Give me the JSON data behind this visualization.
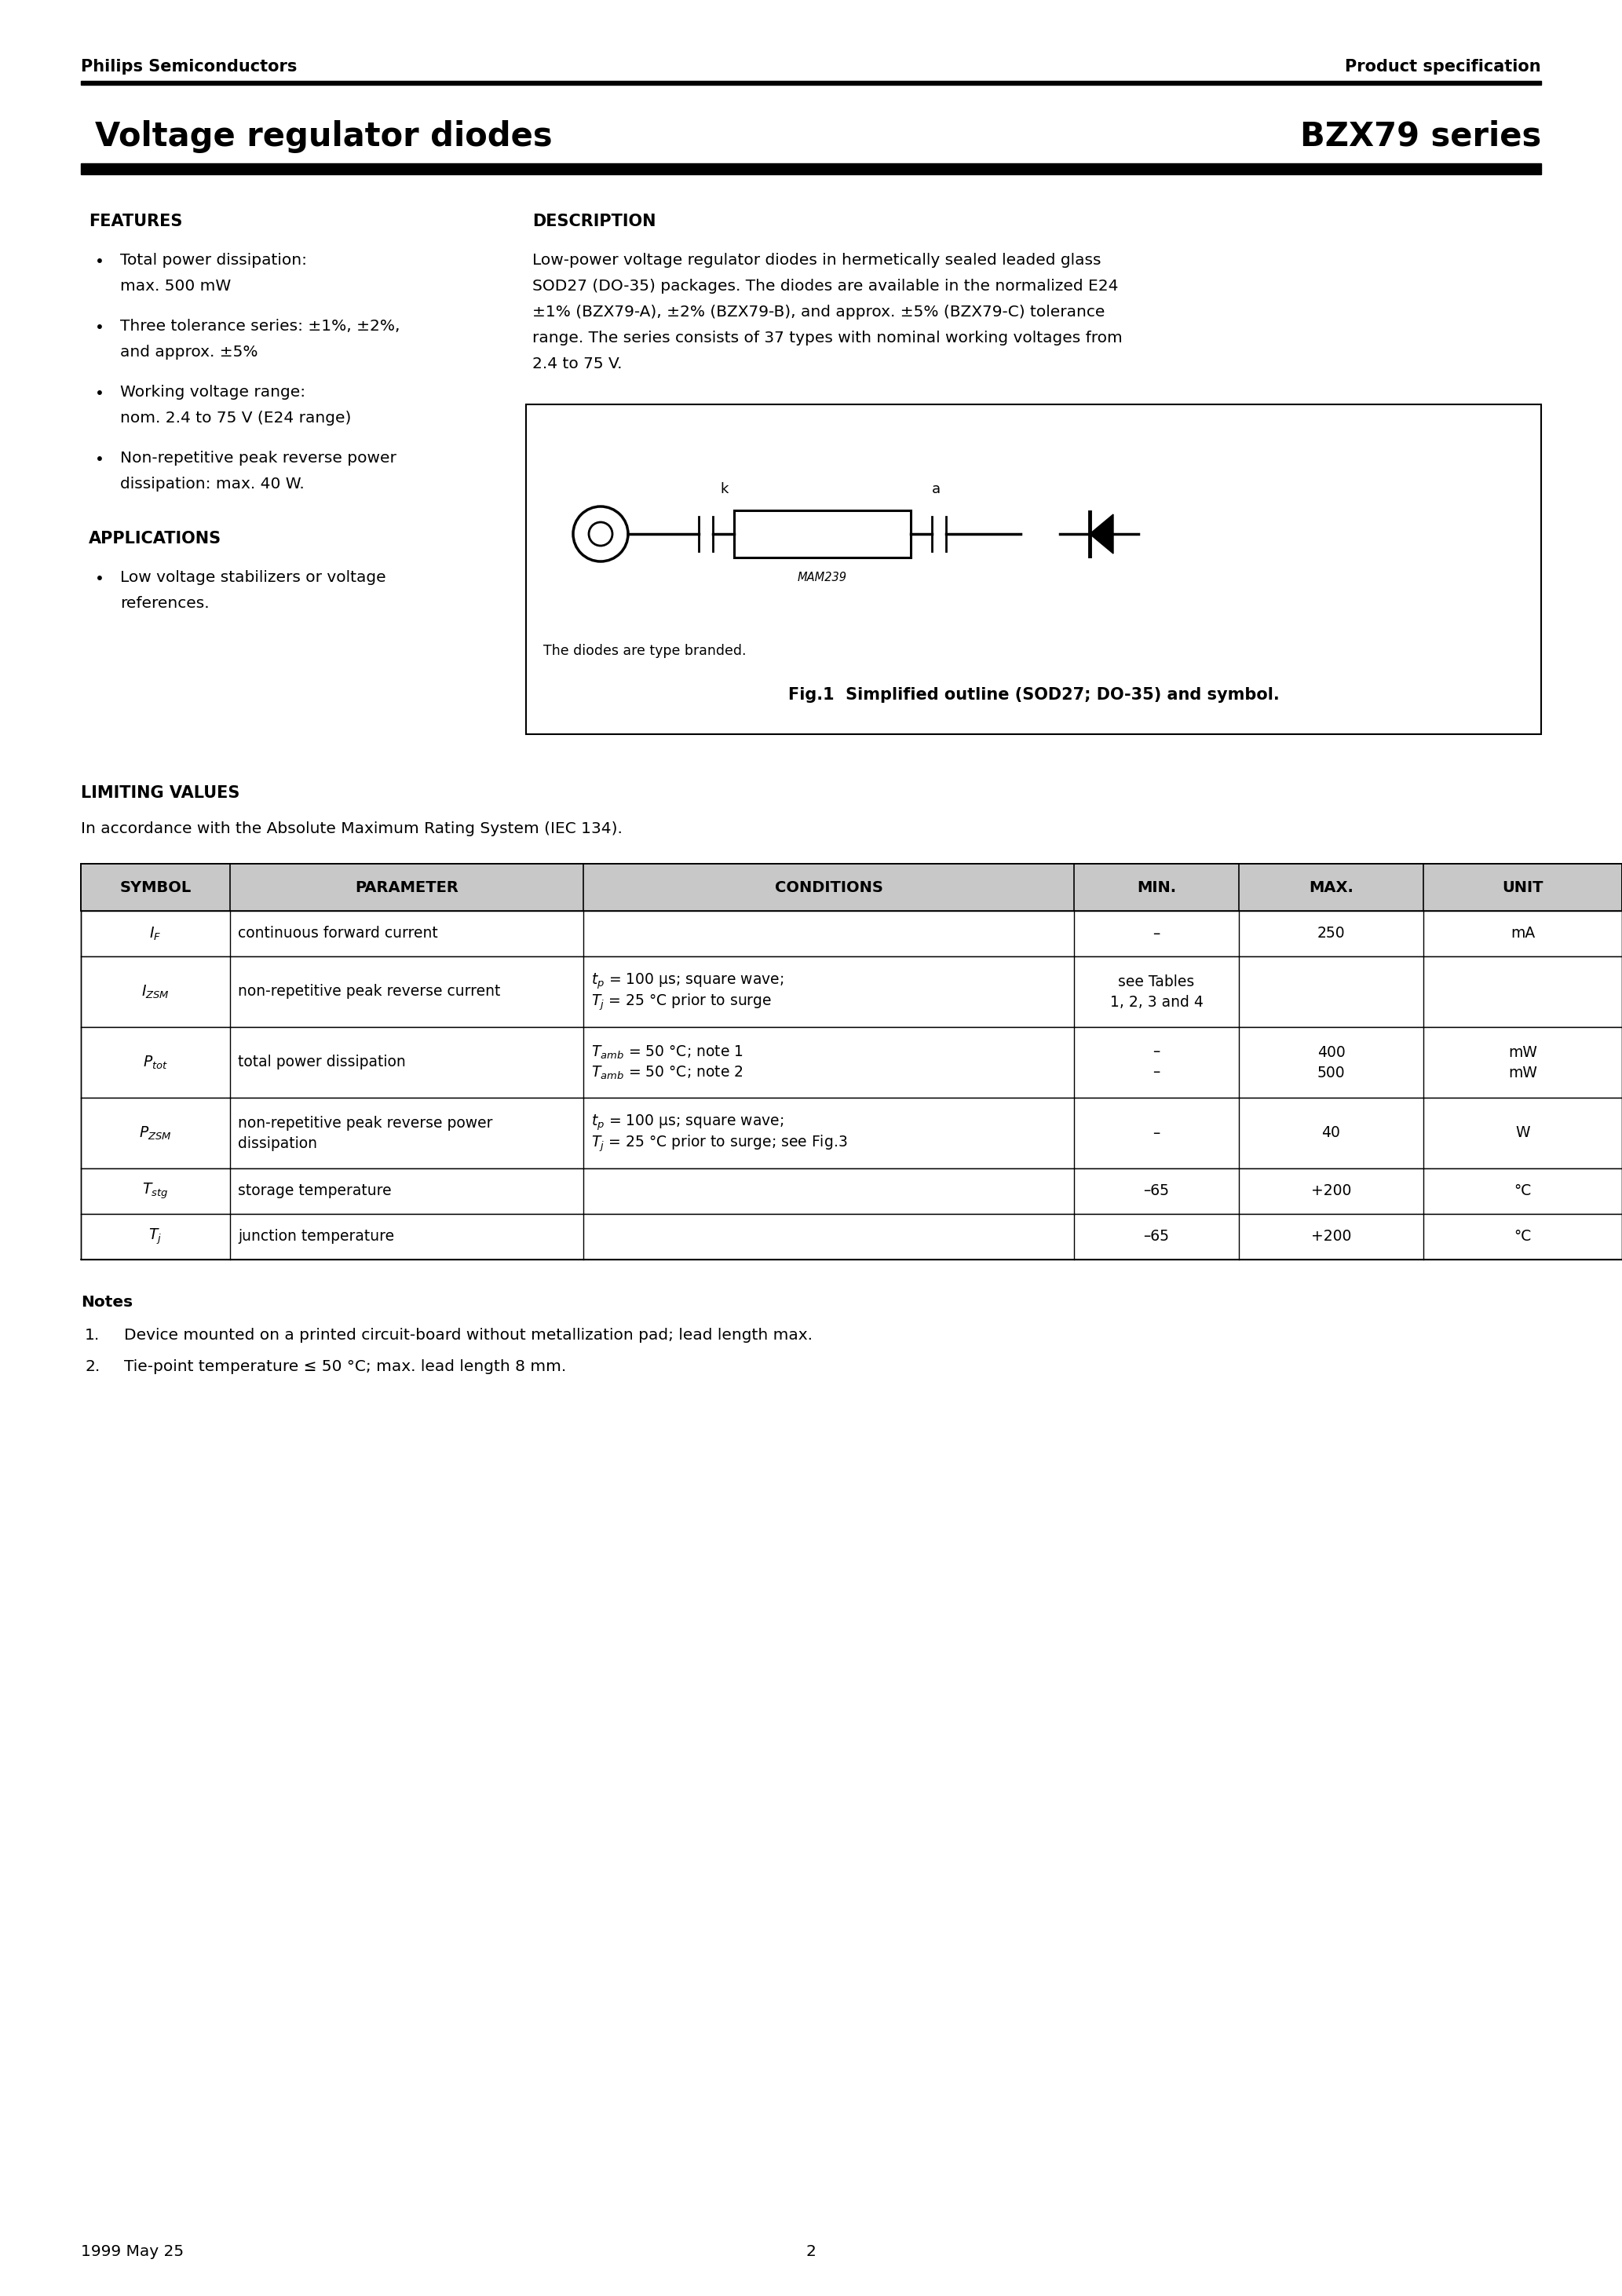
{
  "page_bg": "#ffffff",
  "header_left": "Philips Semiconductors",
  "header_right": "Product specification",
  "title_left": "Voltage regulator diodes",
  "title_right": "BZX79 series",
  "features_title": "FEATURES",
  "features_items": [
    "Total power dissipation:\nmax. 500 mW",
    "Three tolerance series: ±1%, ±2%,\nand approx. ±5%",
    "Working voltage range:\nnom. 2.4 to 75 V (E24 range)",
    "Non-repetitive peak reverse power\ndissipation: max. 40 W."
  ],
  "applications_title": "APPLICATIONS",
  "applications_items": [
    "Low voltage stabilizers or voltage\nreferences."
  ],
  "description_title": "DESCRIPTION",
  "description_lines": [
    "Low-power voltage regulator diodes in hermetically sealed leaded glass",
    "SOD27 (DO-35) packages. The diodes are available in the normalized E24",
    "±1% (BZX79-A), ±2% (BZX79-B), and approx. ±5% (BZX79-C) tolerance",
    "range. The series consists of 37 types with nominal working voltages from",
    "2.4 to 75 V."
  ],
  "fig_caption_inside": "The diodes are type branded.",
  "fig_caption_outside": "Fig.1  Simplified outline (SOD27; DO-35) and symbol.",
  "limiting_title": "LIMITING VALUES",
  "limiting_subtitle": "In accordance with the Absolute Maximum Rating System (IEC 134).",
  "table_col_headers": [
    "SYMBOL",
    "PARAMETER",
    "CONDITIONS",
    "MIN.",
    "MAX.",
    "UNIT"
  ],
  "table_rows": [
    {
      "sym": "I_F",
      "param": [
        "continuous forward current"
      ],
      "cond": [],
      "min": [
        "–"
      ],
      "max": [
        "250"
      ],
      "unit": [
        "mA"
      ],
      "rh": 58
    },
    {
      "sym": "I_ZSM",
      "param": [
        "non-repetitive peak reverse current"
      ],
      "cond": [
        "tₚ = 100 μs; square wave;",
        "Tⱼ = 25 °C prior to surge"
      ],
      "min": [
        "see Tables",
        "1, 2, 3 and 4"
      ],
      "max": [
        ""
      ],
      "unit": [
        ""
      ],
      "rh": 90
    },
    {
      "sym": "P_tot",
      "param": [
        "total power dissipation"
      ],
      "cond": [
        "Tₐₘᵇ = 50 °C; note 1",
        "Tₐₘᵇ = 50 °C; note 2"
      ],
      "min": [
        "–",
        "–"
      ],
      "max": [
        "400",
        "500"
      ],
      "unit": [
        "mW",
        "mW"
      ],
      "rh": 90
    },
    {
      "sym": "P_ZSM",
      "param": [
        "non-repetitive peak reverse power",
        "dissipation"
      ],
      "cond": [
        "tₚ = 100 μs; square wave;",
        "Tⱼ = 25 °C prior to surge; see Fig.3"
      ],
      "min": [
        "–"
      ],
      "max": [
        "40"
      ],
      "unit": [
        "W"
      ],
      "rh": 90
    },
    {
      "sym": "T_stg",
      "param": [
        "storage temperature"
      ],
      "cond": [],
      "min": [
        "–65"
      ],
      "max": [
        "+200"
      ],
      "unit": [
        "°C"
      ],
      "rh": 58
    },
    {
      "sym": "T_j",
      "param": [
        "junction temperature"
      ],
      "cond": [],
      "min": [
        "–65"
      ],
      "max": [
        "+200"
      ],
      "unit": [
        "°C"
      ],
      "rh": 58
    }
  ],
  "notes_title": "Notes",
  "notes": [
    "Device mounted on a printed circuit-board without metallization pad; lead length max.",
    "Tie-point temperature ≤ 50 °C; max. lead length 8 mm."
  ],
  "footer_left": "1999 May 25",
  "footer_center": "2"
}
